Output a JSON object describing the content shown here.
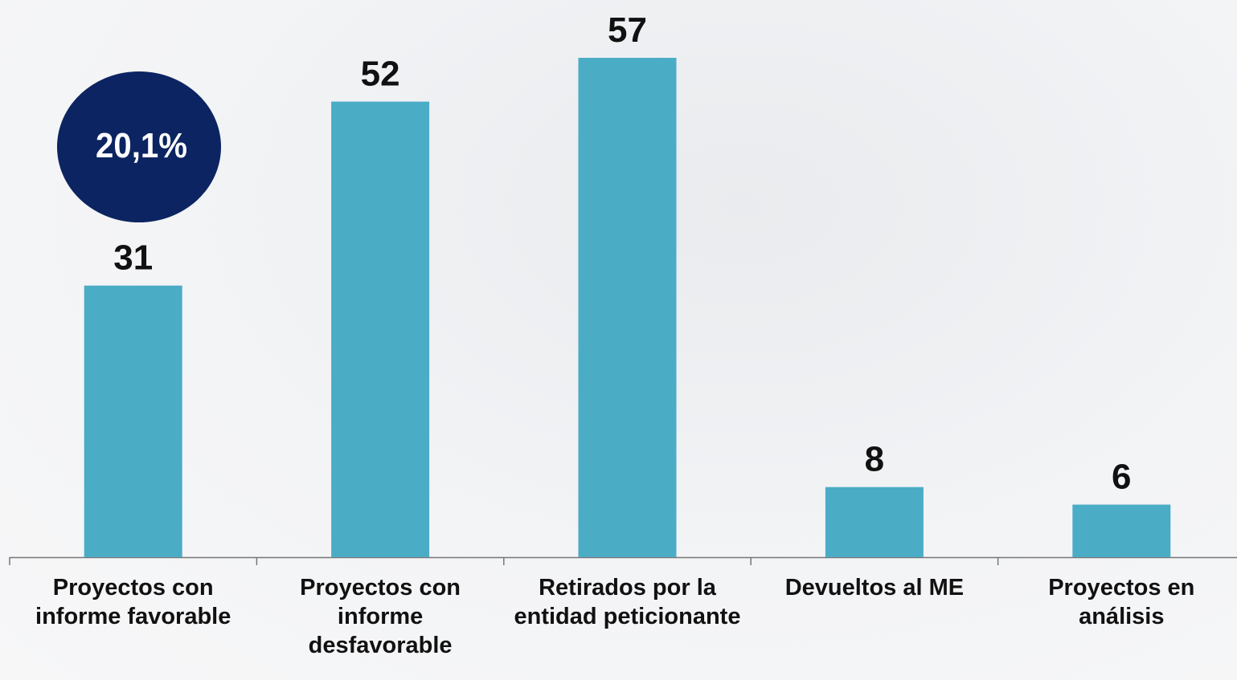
{
  "chart_data": {
    "type": "bar",
    "annotation": "20,1%",
    "categories": [
      "Proyectos con informe favorable",
      "Proyectos con informe desfavorable",
      "Retirados por la entidad peticionante",
      "Devueltos al ME",
      "Proyectos en análisis"
    ],
    "values": [
      31,
      52,
      57,
      8,
      6
    ],
    "color": "#4bacc6"
  }
}
